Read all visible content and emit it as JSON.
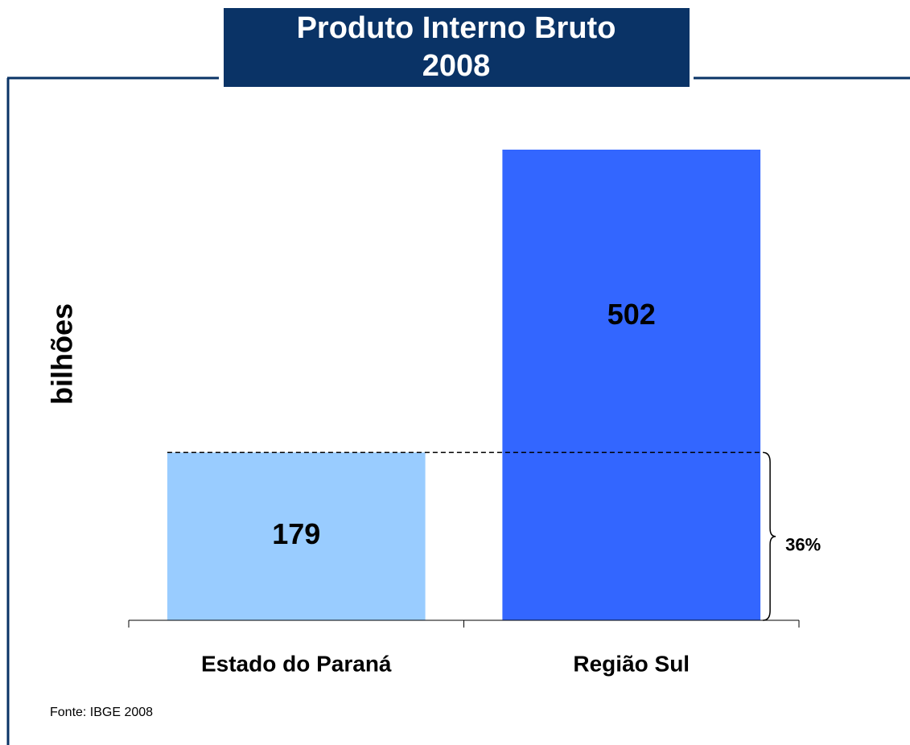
{
  "chart_data": {
    "type": "bar",
    "title": [
      "Produto Interno Bruto",
      "2008"
    ],
    "y_label": "bilhões",
    "categories": [
      "Estado do Paraná",
      "Região Sul"
    ],
    "values": [
      179,
      502
    ],
    "colors": [
      "#99ccff",
      "#3366ff"
    ],
    "ylim": [
      0,
      502
    ],
    "annotation": "36%",
    "source": "Fonte: IBGE 2008"
  }
}
